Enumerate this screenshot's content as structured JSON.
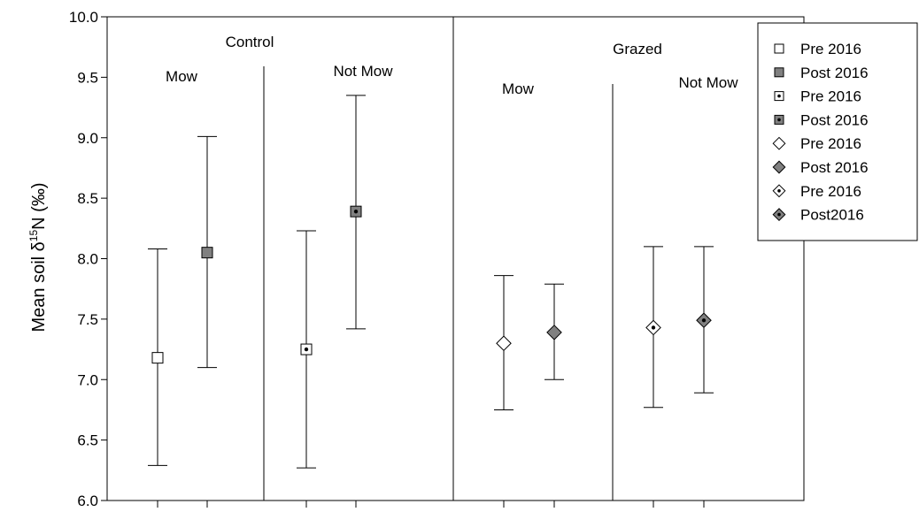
{
  "chart_data": {
    "type": "scatter",
    "title": "",
    "xlabel": "",
    "ylabel": {
      "prefix": "Mean soil δ",
      "superscript": "15",
      "suffix": "N (‰)"
    },
    "ylim": [
      6.0,
      10.0
    ],
    "yticks": [
      "6.0",
      "6.5",
      "7.0",
      "7.5",
      "8.0",
      "8.5",
      "9.0",
      "9.5",
      "10.0"
    ],
    "grid": false,
    "legend_position": "top-right",
    "group_labels": [
      {
        "text": "Control",
        "level": "top"
      },
      {
        "text": "Mow",
        "level": "sub"
      },
      {
        "text": "Not Mow",
        "level": "sub"
      },
      {
        "text": "Grazed",
        "level": "top"
      },
      {
        "text": "Mow",
        "level": "sub"
      },
      {
        "text": "Not Mow",
        "level": "sub"
      }
    ],
    "series": [
      {
        "name": "Pre 2016",
        "marker": "square",
        "fill": "#ffffff",
        "dot": false,
        "position": 1,
        "mean": 7.18,
        "lower": 6.29,
        "upper": 8.08
      },
      {
        "name": "Post 2016",
        "marker": "square",
        "fill": "#808080",
        "dot": false,
        "position": 2,
        "mean": 8.05,
        "lower": 7.1,
        "upper": 9.01
      },
      {
        "name": "Pre 2016",
        "marker": "square",
        "fill": "#ffffff",
        "dot": true,
        "position": 3,
        "mean": 7.25,
        "lower": 6.27,
        "upper": 8.23
      },
      {
        "name": "Post 2016",
        "marker": "square",
        "fill": "#808080",
        "dot": true,
        "position": 4,
        "mean": 8.39,
        "lower": 7.42,
        "upper": 9.35
      },
      {
        "name": "Pre 2016",
        "marker": "diamond",
        "fill": "#ffffff",
        "dot": false,
        "position": 5,
        "mean": 7.3,
        "lower": 6.75,
        "upper": 7.86
      },
      {
        "name": "Post 2016",
        "marker": "diamond",
        "fill": "#808080",
        "dot": false,
        "position": 6,
        "mean": 7.39,
        "lower": 7.0,
        "upper": 7.79
      },
      {
        "name": "Pre 2016",
        "marker": "diamond",
        "fill": "#ffffff",
        "dot": true,
        "position": 7,
        "mean": 7.43,
        "lower": 6.77,
        "upper": 8.1
      },
      {
        "name": "Post2016",
        "marker": "diamond",
        "fill": "#808080",
        "dot": true,
        "position": 8,
        "mean": 7.49,
        "lower": 6.89,
        "upper": 8.1
      }
    ]
  }
}
